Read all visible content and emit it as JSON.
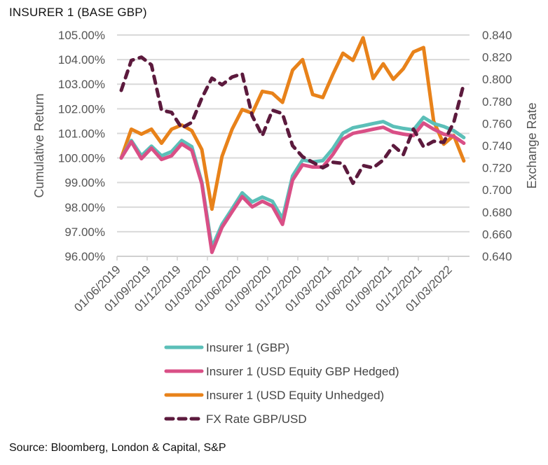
{
  "title": "INSURER 1 (BASE GBP)",
  "source": "Source: Bloomberg, London & Capital, S&P",
  "chart_data": {
    "type": "line",
    "title": "INSURER 1 (BASE GBP)",
    "xlabel": "",
    "ylabel": "Cumulative Return",
    "y2label": "Exchange Rate",
    "ylim": [
      96,
      105
    ],
    "y2lim": [
      0.64,
      0.84
    ],
    "grid": true,
    "legend_position": "bottom",
    "yticks": [
      "96.00%",
      "97.00%",
      "98.00%",
      "99.00%",
      "100.00%",
      "101.00%",
      "102.00%",
      "103.00%",
      "104.00%",
      "105.00%"
    ],
    "y2ticks": [
      "0.640",
      "0.660",
      "0.680",
      "0.700",
      "0.720",
      "0.740",
      "0.760",
      "0.780",
      "0.800",
      "0.820",
      "0.840"
    ],
    "xticks": [
      "01/06/2019",
      "01/09/2019",
      "01/12/2019",
      "01/03/2020",
      "01/06/2020",
      "01/09/2020",
      "01/12/2020",
      "01/03/2021",
      "01/06/2021",
      "01/09/2021",
      "01/12/2021",
      "01/03/2022"
    ],
    "x": [
      "2019-06",
      "2019-07",
      "2019-08",
      "2019-09",
      "2019-10",
      "2019-11",
      "2019-12",
      "2020-01",
      "2020-02",
      "2020-03",
      "2020-04",
      "2020-05",
      "2020-06",
      "2020-07",
      "2020-08",
      "2020-09",
      "2020-10",
      "2020-11",
      "2020-12",
      "2021-01",
      "2021-02",
      "2021-03",
      "2021-04",
      "2021-05",
      "2021-06",
      "2021-07",
      "2021-08",
      "2021-09",
      "2021-10",
      "2021-11",
      "2021-12",
      "2022-01",
      "2022-02",
      "2022-03",
      "2022-04"
    ],
    "series": [
      {
        "name": "Insurer 1 (GBP)",
        "axis": "left",
        "color": "#5bbfb8",
        "style": "solid",
        "values": [
          100.0,
          100.71,
          100.09,
          100.48,
          100.09,
          100.26,
          100.71,
          100.46,
          99.01,
          96.36,
          97.3,
          97.93,
          98.58,
          98.21,
          98.41,
          98.24,
          97.53,
          99.27,
          99.92,
          99.84,
          99.89,
          100.38,
          101.01,
          101.23,
          101.31,
          101.4,
          101.48,
          101.28,
          101.2,
          101.14,
          101.65,
          101.4,
          101.28,
          101.11,
          100.83
        ]
      },
      {
        "name": "Insurer 1 (USD Equity GBP Hedged)",
        "axis": "left",
        "color": "#d94f86",
        "style": "solid",
        "values": [
          100.0,
          100.66,
          99.97,
          100.4,
          99.94,
          100.09,
          100.57,
          100.31,
          98.95,
          96.16,
          97.18,
          97.81,
          98.43,
          98.01,
          98.24,
          98.04,
          97.3,
          99.1,
          99.72,
          99.63,
          99.63,
          100.14,
          100.77,
          101.0,
          101.08,
          101.17,
          101.25,
          101.05,
          100.97,
          100.91,
          101.42,
          101.17,
          100.97,
          100.88,
          100.6
        ]
      },
      {
        "name": "Insurer 1 (USD Equity Unhedged)",
        "axis": "left",
        "color": "#e8821a",
        "style": "solid",
        "values": [
          100.0,
          101.17,
          100.97,
          101.17,
          100.6,
          101.17,
          101.34,
          101.11,
          100.34,
          97.92,
          100.06,
          101.17,
          101.97,
          101.82,
          102.71,
          102.63,
          102.26,
          103.57,
          104.0,
          102.58,
          102.46,
          103.4,
          104.26,
          103.97,
          104.89,
          103.23,
          103.83,
          103.2,
          103.63,
          104.31,
          104.49,
          101.5,
          100.56,
          100.91,
          99.88
        ]
      },
      {
        "name": "FX Rate GBP/USD",
        "axis": "right",
        "color": "#5c1a3d",
        "style": "dashed",
        "values": [
          0.79,
          0.817,
          0.82,
          0.813,
          0.772,
          0.77,
          0.756,
          0.761,
          0.783,
          0.801,
          0.795,
          0.802,
          0.805,
          0.767,
          0.749,
          0.772,
          0.769,
          0.74,
          0.73,
          0.725,
          0.72,
          0.725,
          0.724,
          0.706,
          0.722,
          0.72,
          0.727,
          0.74,
          0.732,
          0.755,
          0.739,
          0.744,
          0.743,
          0.761,
          0.796
        ]
      }
    ]
  }
}
